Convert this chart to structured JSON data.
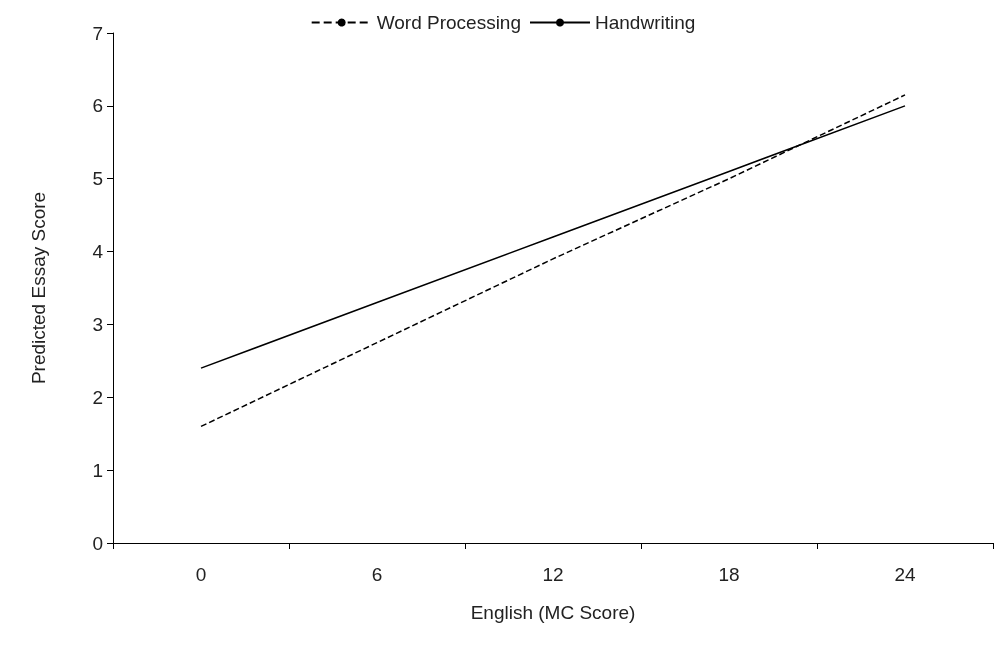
{
  "chart_data": {
    "type": "line",
    "xlabel": "English (MC Score)",
    "ylabel": "Predicted Essay Score",
    "categories": [
      "0",
      "6",
      "12",
      "18",
      "24"
    ],
    "series": [
      {
        "name": "Word Processing",
        "color": "#000000",
        "line_style": "dashed",
        "values": [
          1.6,
          2.75,
          3.9,
          5.0,
          6.15
        ]
      },
      {
        "name": "Handwriting",
        "color": "#000000",
        "line_style": "solid",
        "values": [
          2.4,
          3.3,
          4.2,
          5.1,
          6.0
        ]
      }
    ],
    "ylim": [
      0,
      7
    ],
    "yticks": [
      0,
      1,
      2,
      3,
      4,
      5,
      6,
      7
    ],
    "grid": false,
    "legend": "top",
    "marker": "none"
  }
}
